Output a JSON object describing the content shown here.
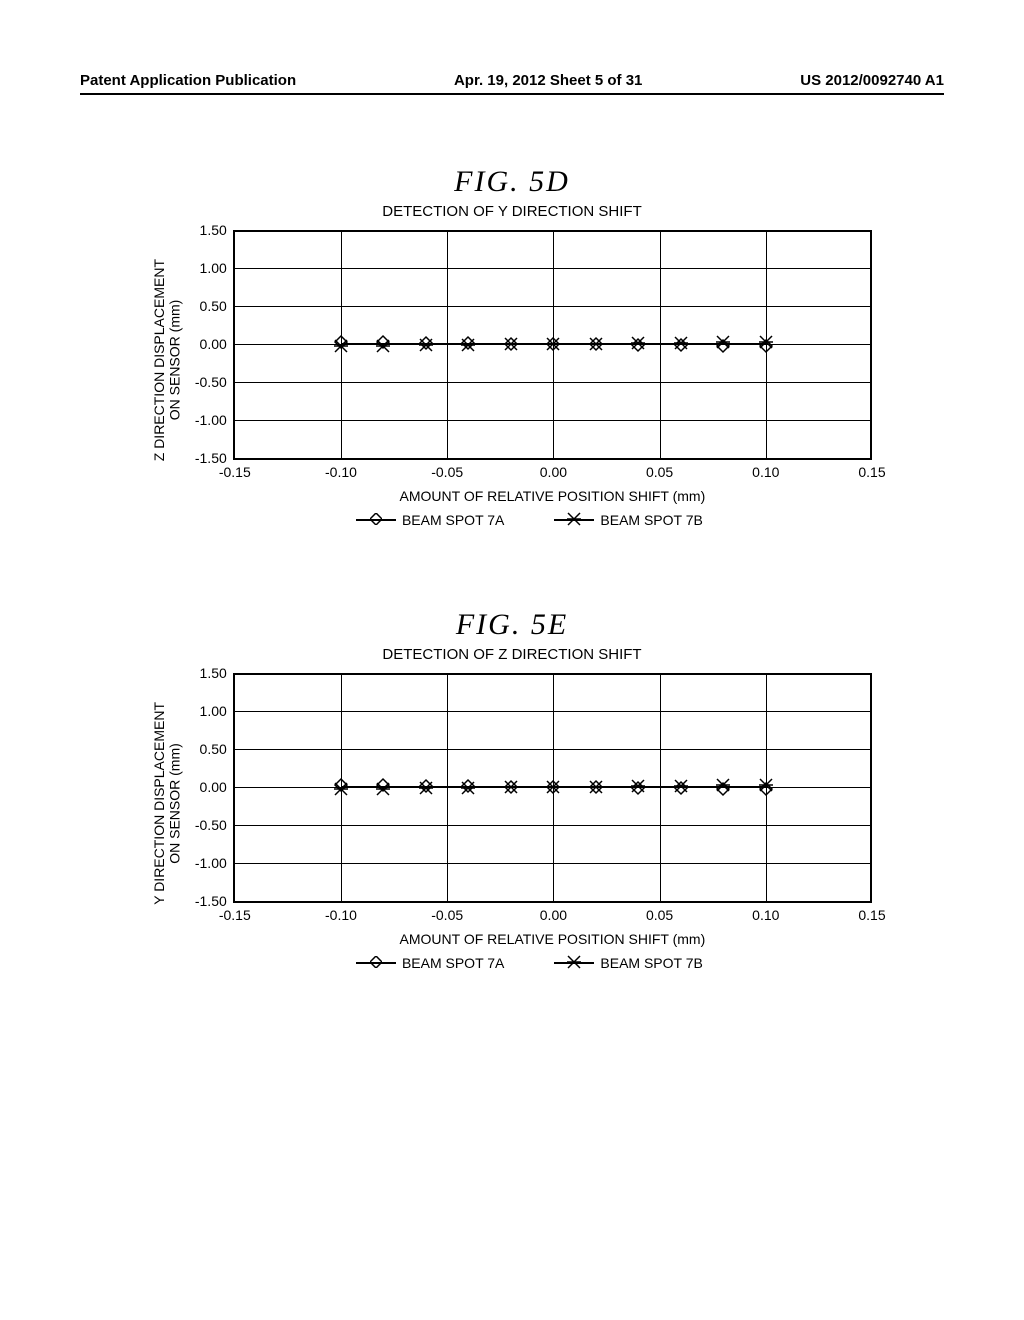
{
  "header": {
    "left": "Patent Application Publication",
    "center": "Apr. 19, 2012  Sheet 5 of 31",
    "right": "US 2012/0092740 A1"
  },
  "figures": [
    {
      "id": "fig-5d",
      "title": "FIG.  5D",
      "subtitle": "DETECTION OF Y DIRECTION SHIFT",
      "ylabel_line1": "Z DIRECTION DISPLACEMENT",
      "ylabel_line2": "ON SENSOR (mm)",
      "xlabel": "AMOUNT OF RELATIVE POSITION SHIFT (mm)",
      "xlim": [
        -0.15,
        0.15
      ],
      "ylim": [
        -1.5,
        1.5
      ],
      "xticks": [
        -0.15,
        -0.1,
        -0.05,
        0.0,
        0.05,
        0.1,
        0.15
      ],
      "yticks": [
        -1.5,
        -1.0,
        -0.5,
        0.0,
        0.5,
        1.0,
        1.5
      ],
      "xtick_labels": [
        "-0.15",
        "-0.10",
        "-0.05",
        "0.00",
        "0.05",
        "0.10",
        "0.15"
      ],
      "ytick_labels": [
        "-1.50",
        "-1.00",
        "-0.50",
        "0.00",
        "0.50",
        "1.00",
        "1.50"
      ],
      "series": [
        {
          "name": "BEAM SPOT 7A",
          "marker": "diamond",
          "x": [
            -0.1,
            -0.08,
            -0.06,
            -0.04,
            -0.02,
            0.0,
            0.02,
            0.04,
            0.06,
            0.08,
            0.1
          ],
          "y": [
            0.02,
            0.02,
            0.01,
            0.01,
            0.0,
            0.0,
            0.0,
            -0.01,
            -0.01,
            -0.02,
            -0.02
          ]
        },
        {
          "name": "BEAM SPOT 7B",
          "marker": "cross",
          "x": [
            -0.1,
            -0.08,
            -0.06,
            -0.04,
            -0.02,
            0.0,
            0.02,
            0.04,
            0.06,
            0.08,
            0.1
          ],
          "y": [
            -0.02,
            -0.02,
            -0.01,
            -0.01,
            0.0,
            0.0,
            0.0,
            0.01,
            0.01,
            0.02,
            0.02
          ]
        }
      ]
    },
    {
      "id": "fig-5e",
      "title": "FIG.  5E",
      "subtitle": "DETECTION OF Z DIRECTION SHIFT",
      "ylabel_line1": "Y DIRECTION DISPLACEMENT",
      "ylabel_line2": "ON SENSOR (mm)",
      "xlabel": "AMOUNT OF RELATIVE POSITION SHIFT (mm)",
      "xlim": [
        -0.15,
        0.15
      ],
      "ylim": [
        -1.5,
        1.5
      ],
      "xticks": [
        -0.15,
        -0.1,
        -0.05,
        0.0,
        0.05,
        0.1,
        0.15
      ],
      "yticks": [
        -1.5,
        -1.0,
        -0.5,
        0.0,
        0.5,
        1.0,
        1.5
      ],
      "xtick_labels": [
        "-0.15",
        "-0.10",
        "-0.05",
        "0.00",
        "0.05",
        "0.10",
        "0.15"
      ],
      "ytick_labels": [
        "-1.50",
        "-1.00",
        "-0.50",
        "0.00",
        "0.50",
        "1.00",
        "1.50"
      ],
      "series": [
        {
          "name": "BEAM SPOT 7A",
          "marker": "diamond",
          "x": [
            -0.1,
            -0.08,
            -0.06,
            -0.04,
            -0.02,
            0.0,
            0.02,
            0.04,
            0.06,
            0.08,
            0.1
          ],
          "y": [
            0.02,
            0.02,
            0.01,
            0.01,
            0.0,
            0.0,
            0.0,
            -0.01,
            -0.01,
            -0.02,
            -0.02
          ]
        },
        {
          "name": "BEAM SPOT 7B",
          "marker": "cross",
          "x": [
            -0.1,
            -0.08,
            -0.06,
            -0.04,
            -0.02,
            0.0,
            0.02,
            0.04,
            0.06,
            0.08,
            0.1
          ],
          "y": [
            -0.02,
            -0.02,
            -0.01,
            -0.01,
            0.0,
            0.0,
            0.0,
            0.01,
            0.01,
            0.02,
            0.02
          ]
        }
      ]
    }
  ],
  "marker_stroke": "#000000",
  "background_color": "#ffffff"
}
